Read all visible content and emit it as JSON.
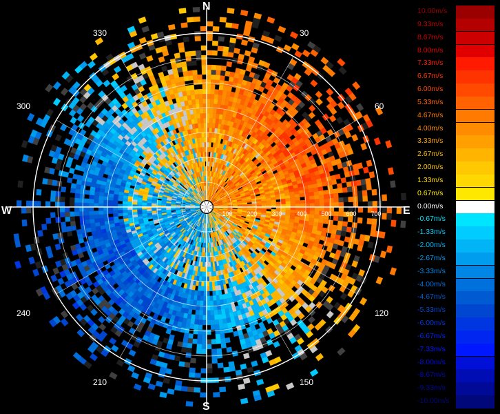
{
  "radar": {
    "cardinals": {
      "n": "N",
      "s": "S",
      "e": "E",
      "w": "W"
    },
    "degree_labels": [
      "30",
      "60",
      "120",
      "150",
      "210",
      "240",
      "300",
      "330"
    ],
    "range_labels": [
      "100",
      "200",
      "300",
      "400",
      "500",
      "600",
      "700"
    ]
  },
  "legend": {
    "entries": [
      {
        "label": "10.00m/s",
        "color": "#9a0000"
      },
      {
        "label": "9.33m/s",
        "color": "#b50000"
      },
      {
        "label": "8.67m/s",
        "color": "#cc0000"
      },
      {
        "label": "8.00m/s",
        "color": "#e00000"
      },
      {
        "label": "7.33m/s",
        "color": "#ff1a00"
      },
      {
        "label": "6.67m/s",
        "color": "#ff3300"
      },
      {
        "label": "6.00m/s",
        "color": "#ff4a00"
      },
      {
        "label": "5.33m/s",
        "color": "#ff6200"
      },
      {
        "label": "4.67m/s",
        "color": "#ff7a00"
      },
      {
        "label": "4.00m/s",
        "color": "#ff8c00"
      },
      {
        "label": "3.33m/s",
        "color": "#ffa000"
      },
      {
        "label": "2.67m/s",
        "color": "#ffb400"
      },
      {
        "label": "2.00m/s",
        "color": "#ffc800"
      },
      {
        "label": "1.33m/s",
        "color": "#ffd800"
      },
      {
        "label": "0.67m/s",
        "color": "#ffe800"
      },
      {
        "label": "0.00m/s",
        "color": "#ffffff"
      },
      {
        "label": "-0.67m/s",
        "color": "#00e5ff"
      },
      {
        "label": "-1.33m/s",
        "color": "#00ccff"
      },
      {
        "label": "-2.00m/s",
        "color": "#00b4f5"
      },
      {
        "label": "-2.67m/s",
        "color": "#009ced"
      },
      {
        "label": "-3.33m/s",
        "color": "#0086e5"
      },
      {
        "label": "-4.00m/s",
        "color": "#0070dc"
      },
      {
        "label": "-4.67m/s",
        "color": "#005ad2"
      },
      {
        "label": "-5.33m/s",
        "color": "#0046d0"
      },
      {
        "label": "-6.00m/s",
        "color": "#0036e0"
      },
      {
        "label": "-6.67m/s",
        "color": "#0026f0"
      },
      {
        "label": "-7.33m/s",
        "color": "#0018ff"
      },
      {
        "label": "-8.00m/s",
        "color": "#0010d8"
      },
      {
        "label": "-8.67m/s",
        "color": "#000cb4"
      },
      {
        "label": "-9.33m/s",
        "color": "#000a96"
      },
      {
        "label": "-10.00m/s",
        "color": "#00087a"
      }
    ]
  }
}
